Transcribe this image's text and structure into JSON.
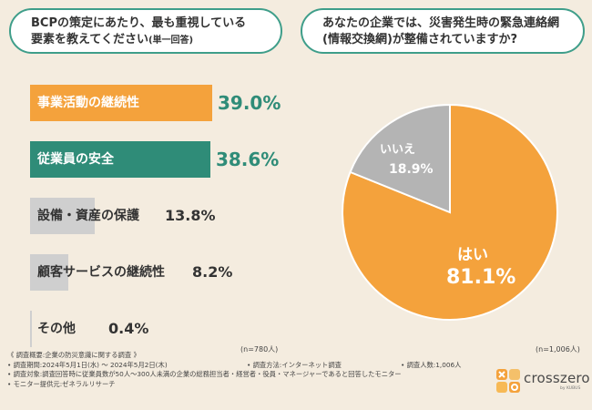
{
  "colors": {
    "orange": "#f4a23c",
    "teal": "#2f8c78",
    "gray": "#cfcfcf",
    "pie_gray": "#b4b4b4",
    "background": "#f4ecdf"
  },
  "q1": {
    "title_line1": "BCPの策定にあたり、最も重視している",
    "title_line2": "要素を教えてください",
    "title_note": "(単一回答)",
    "n": "(n=780人)"
  },
  "q2": {
    "title_line1": "あなたの企業では、災害発生時の緊急連絡網",
    "title_line2": "(情報交換網)が整備されていますか?",
    "n": "(n=1,006人)"
  },
  "chart_data": [
    {
      "type": "bar",
      "orientation": "horizontal",
      "title": "BCPの策定にあたり、最も重視している要素を教えてください(単一回答)",
      "categories": [
        "事業活動の継続性",
        "従業員の安全",
        "設備・資産の保護",
        "顧客サービスの継続性",
        "その他"
      ],
      "values": [
        39.0,
        38.6,
        13.8,
        8.2,
        0.4
      ],
      "value_labels": [
        "39.0%",
        "38.6%",
        "13.8%",
        "8.2%",
        "0.4%"
      ],
      "unit": "%",
      "xlim": [
        0,
        39.0
      ]
    },
    {
      "type": "pie",
      "title": "あなたの企業では、災害発生時の緊急連絡網(情報交換網)が整備されていますか?",
      "labels": [
        "はい",
        "いいえ"
      ],
      "values": [
        81.1,
        18.9
      ],
      "value_labels": [
        "81.1%",
        "18.9%"
      ],
      "unit": "%"
    }
  ],
  "footer": {
    "line1": "《 調査概要:企業の防災意識に関する調査 》",
    "period": "• 調査期間:2024年5月1日(水) ～ 2024年5月2日(木)",
    "method": "• 調査方法:インターネット調査",
    "count": "• 調査人数:1,006人",
    "target": "• 調査対象:調査回答時に従業員数が50人～300人未満の企業の総務担当者・経営者・役員・マネージャーであると回答したモニター",
    "provider": "• モニター提供元:ゼネラルリサーチ"
  },
  "logo": {
    "name": "crosszero",
    "sub": "by KUBUS"
  }
}
